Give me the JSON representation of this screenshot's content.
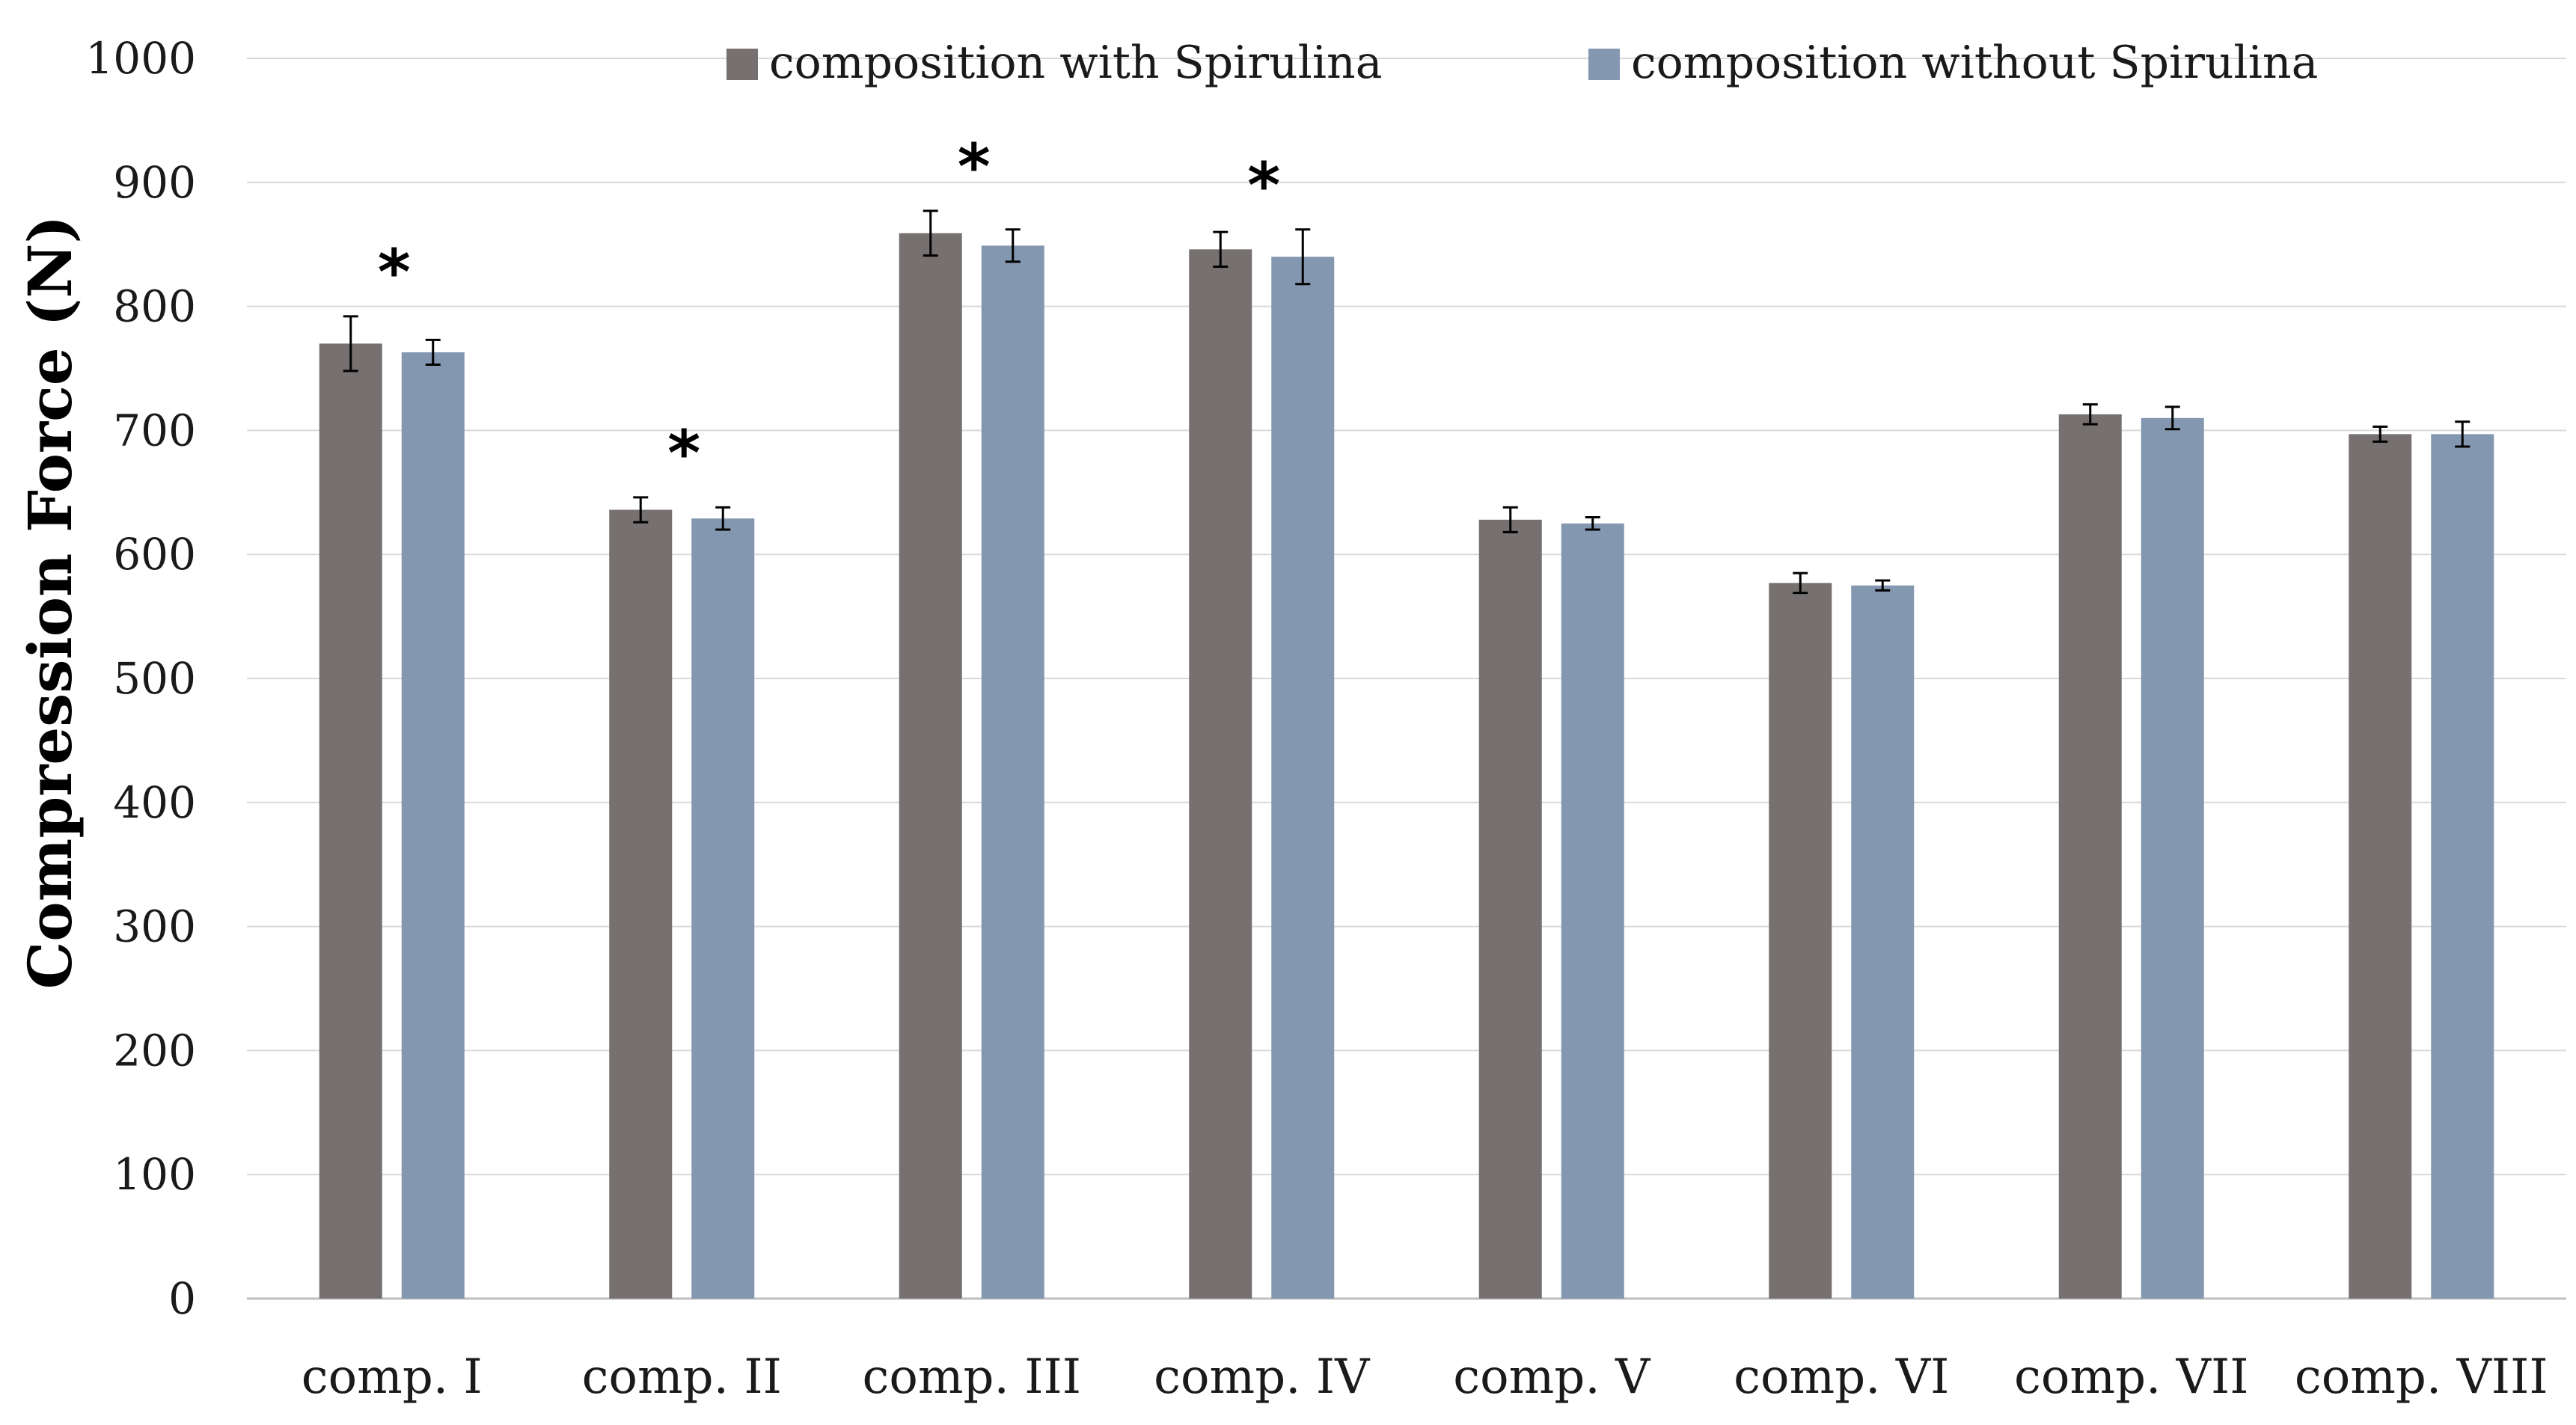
{
  "chart_data": {
    "type": "bar",
    "title": "",
    "xlabel": "",
    "ylabel": "Compression Force (N)",
    "ylim": [
      0,
      1000
    ],
    "yticks": [
      0,
      100,
      200,
      300,
      400,
      500,
      600,
      700,
      800,
      900,
      1000
    ],
    "grid": true,
    "legend_position": "top",
    "categories": [
      "comp. I",
      "comp. II",
      "comp. III",
      "comp. IV",
      "comp. V",
      "comp. VI",
      "comp. VII",
      "comp. VIII"
    ],
    "series": [
      {
        "name": "composition with Spirulina",
        "color": "#767070",
        "values": [
          770,
          636,
          859,
          846,
          628,
          577,
          713,
          697
        ],
        "errors": [
          22,
          10,
          18,
          14,
          10,
          8,
          8,
          6
        ]
      },
      {
        "name": "composition without Spirulina",
        "color": "#8497b0",
        "values": [
          763,
          629,
          849,
          840,
          625,
          575,
          710,
          697
        ],
        "errors": [
          10,
          9,
          13,
          22,
          5,
          4,
          9,
          10
        ]
      }
    ],
    "significance_marker": "*",
    "significant_categories": [
      0,
      1,
      2,
      3
    ]
  }
}
